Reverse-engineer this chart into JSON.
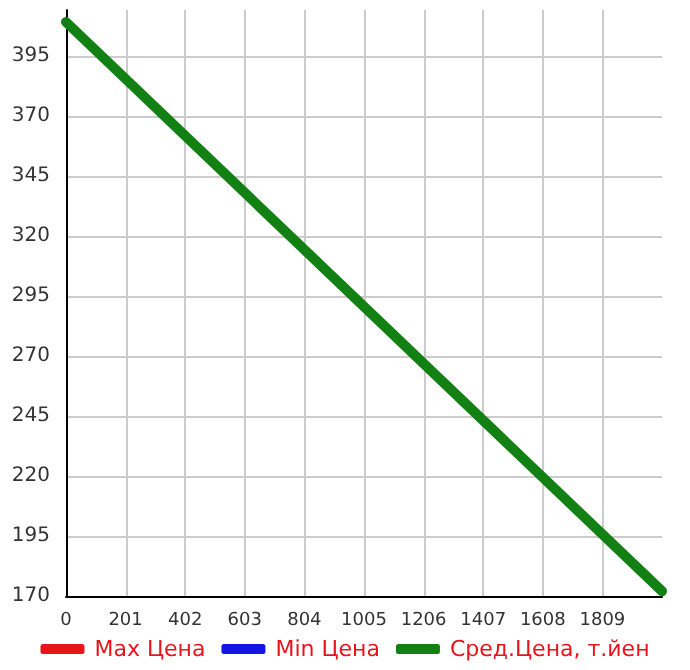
{
  "chart_data": {
    "type": "line",
    "x": [
      0,
      2010
    ],
    "series": [
      {
        "name": "Max Цена",
        "color": "#e8141b",
        "values": [
          null,
          null
        ]
      },
      {
        "name": "Min Цена",
        "color": "#1414e8",
        "values": [
          null,
          null
        ]
      },
      {
        "name": "Сред.Цена, т.йен",
        "color": "#138013",
        "values": [
          409,
          172
        ]
      }
    ],
    "xlim": [
      0,
      2010
    ],
    "xticks": [
      0,
      201,
      402,
      603,
      804,
      1005,
      1206,
      1407,
      1608,
      1809
    ],
    "ylim": [
      170,
      414
    ],
    "yticks": [
      170,
      195,
      220,
      245,
      270,
      295,
      320,
      345,
      370,
      395
    ],
    "grid": true,
    "legend": "bottom",
    "marker": "none",
    "line_style": "solid"
  }
}
